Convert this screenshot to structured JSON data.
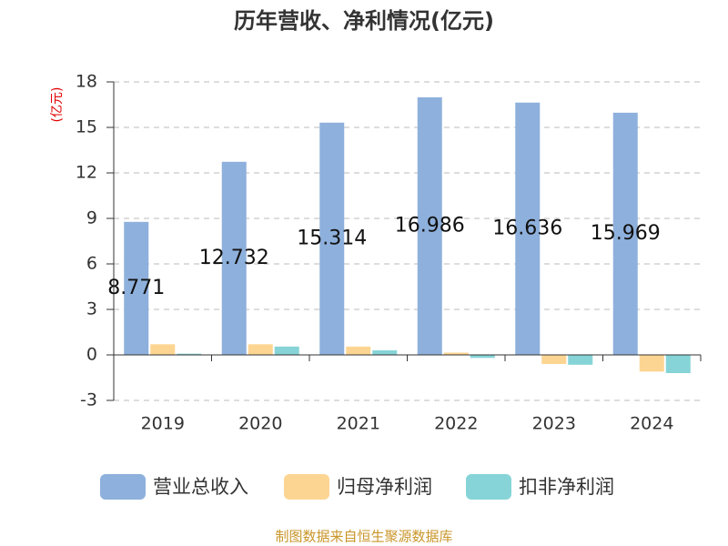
{
  "chart_data": {
    "type": "bar",
    "title": "历年营收、净利情况(亿元)",
    "y_label": "(亿元)",
    "categories": [
      "2019",
      "2020",
      "2021",
      "2022",
      "2023",
      "2024"
    ],
    "series": [
      {
        "name": "营业总收入",
        "color": "#8eb0dc",
        "values": [
          8.771,
          12.732,
          15.314,
          16.986,
          16.636,
          15.969
        ]
      },
      {
        "name": "归母净利润",
        "color": "#fdd593",
        "values": [
          0.7,
          0.7,
          0.55,
          0.15,
          -0.6,
          -1.1
        ]
      },
      {
        "name": "扣非净利润",
        "color": "#86d4d7",
        "values": [
          0.08,
          0.55,
          0.3,
          -0.2,
          -0.65,
          -1.2
        ]
      }
    ],
    "ylim": [
      -3,
      18
    ],
    "yticks": [
      -3,
      0,
      3,
      6,
      9,
      12,
      15,
      18
    ],
    "grid": true,
    "source": "制图数据来自恒生聚源数据库"
  }
}
